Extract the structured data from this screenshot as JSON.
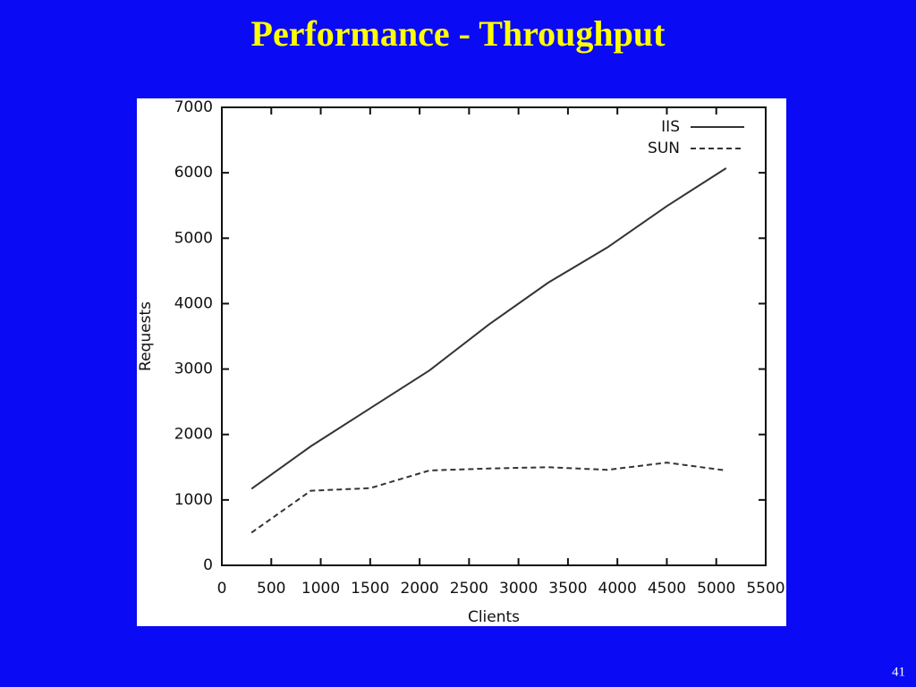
{
  "slide": {
    "title": "Performance - Throughput",
    "page_number": "41"
  },
  "chart_data": {
    "type": "line",
    "x_label": "Clients",
    "y_label": "Requests",
    "x": [
      300,
      900,
      1500,
      2100,
      2700,
      3300,
      3900,
      4500,
      5100
    ],
    "series": [
      {
        "name": "IIS",
        "color": "#333333",
        "linestyle": "solid",
        "values": [
          1170,
          1820,
          2400,
          2980,
          3680,
          4320,
          4860,
          5490,
          6070
        ]
      },
      {
        "name": "SUN",
        "color": "#333333",
        "linestyle": "dashed",
        "values": [
          500,
          1140,
          1180,
          1450,
          1480,
          1500,
          1460,
          1570,
          1450
        ]
      }
    ],
    "xlim": [
      0,
      5500
    ],
    "xticks": [
      0,
      500,
      1000,
      1500,
      2000,
      2500,
      3000,
      3500,
      4000,
      4500,
      5000,
      5500
    ],
    "ylim": [
      0,
      7000
    ],
    "yticks": [
      0,
      1000,
      2000,
      3000,
      4000,
      5000,
      6000,
      7000
    ],
    "grid": false,
    "legend_position": "upper right"
  }
}
